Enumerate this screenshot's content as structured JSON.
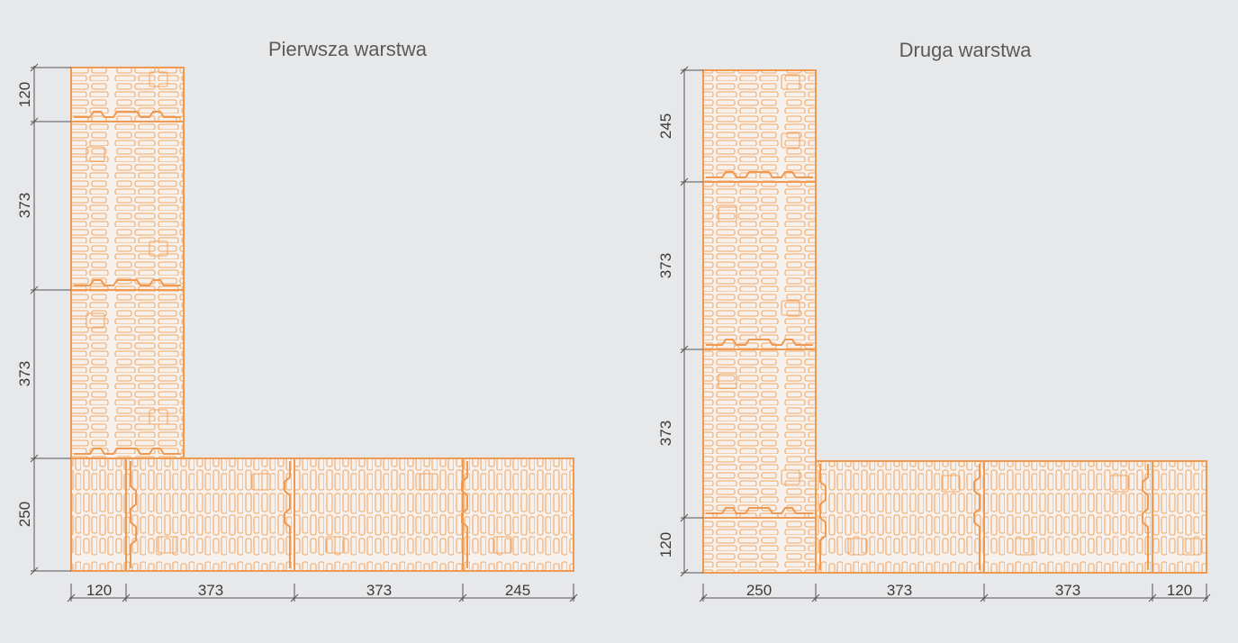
{
  "colors": {
    "background": "#e7e8ea",
    "block_stroke": "#ee9a52",
    "block_fill": "#f6f1ec",
    "dimension": "#555555"
  },
  "layers": [
    {
      "title": "Pierwsza warstwa",
      "vertical_dims": [
        "120",
        "373",
        "373",
        "250"
      ],
      "horizontal_dims": [
        "120",
        "373",
        "373",
        "245"
      ]
    },
    {
      "title": "Druga warstwa",
      "vertical_dims": [
        "245",
        "373",
        "373",
        "120"
      ],
      "horizontal_dims": [
        "250",
        "373",
        "373",
        "120"
      ]
    }
  ]
}
